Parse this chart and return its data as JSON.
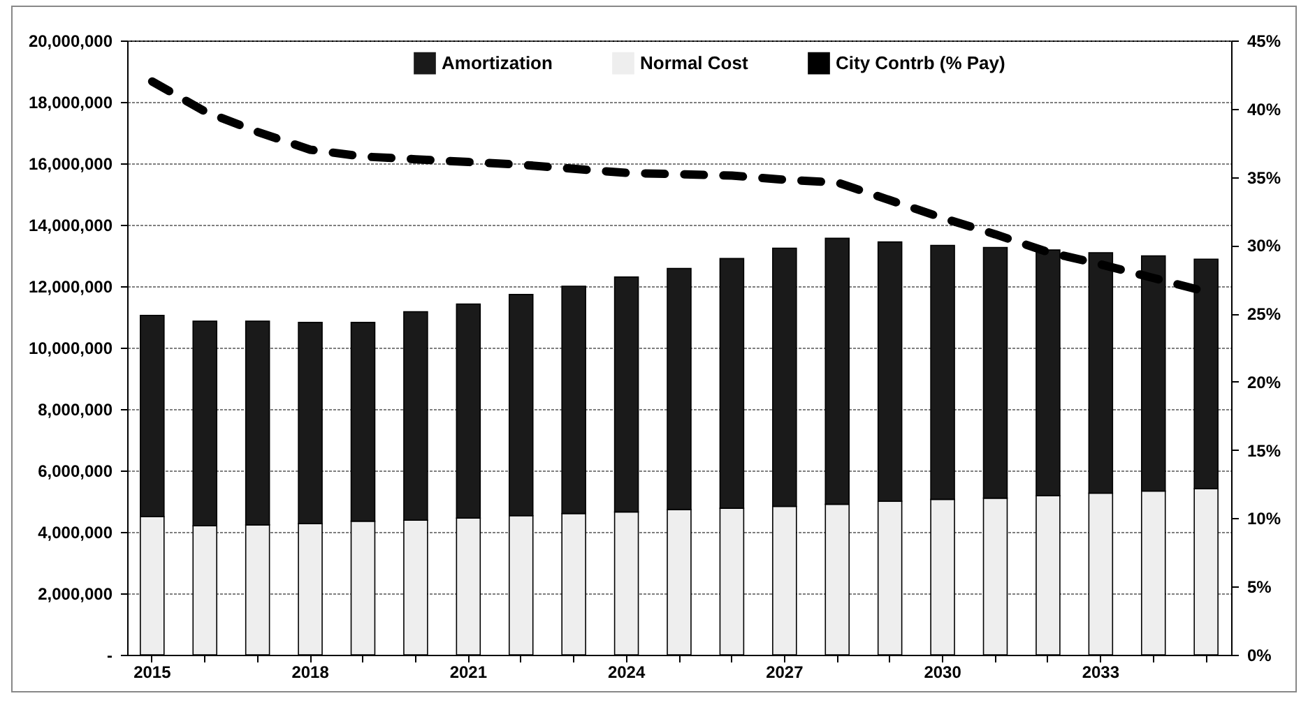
{
  "chart_data": {
    "type": "bar",
    "stacked": true,
    "categories": [
      "2015",
      null,
      null,
      "2018",
      null,
      null,
      "2021",
      null,
      null,
      "2024",
      null,
      null,
      "2027",
      null,
      null,
      "2030",
      null,
      null,
      "2033",
      null,
      null
    ],
    "series": [
      {
        "name": "Normal Cost",
        "color": "#eeeeee",
        "values": [
          4500000,
          4200000,
          4230000,
          4270000,
          4350000,
          4380000,
          4450000,
          4530000,
          4600000,
          4650000,
          4730000,
          4770000,
          4830000,
          4900000,
          5000000,
          5060000,
          5100000,
          5180000,
          5260000,
          5330000,
          5410000
        ]
      },
      {
        "name": "Amortization",
        "color": "#1a1a1a",
        "values": [
          6550000,
          6660000,
          6630000,
          6550000,
          6470000,
          6790000,
          6970000,
          7200000,
          7400000,
          7650000,
          7850000,
          8130000,
          8410000,
          8660000,
          8440000,
          8270000,
          8160000,
          8000000,
          7830000,
          7660000,
          7470000
        ]
      },
      {
        "name": "City Contrb (% Pay)",
        "type": "line",
        "axis": "y2",
        "color": "#000000",
        "line_style": "dashed",
        "values": [
          42.0,
          39.8,
          38.3,
          37.0,
          36.5,
          36.3,
          36.1,
          35.9,
          35.6,
          35.3,
          35.2,
          35.1,
          34.8,
          34.6,
          33.3,
          32.0,
          30.8,
          29.5,
          28.6,
          27.6,
          26.6
        ]
      }
    ],
    "ylim": [
      0,
      20000000
    ],
    "yticks": [
      {
        "value": 0,
        "label": "-"
      },
      {
        "value": 2000000,
        "label": "2,000,000"
      },
      {
        "value": 4000000,
        "label": "4,000,000"
      },
      {
        "value": 6000000,
        "label": "6,000,000"
      },
      {
        "value": 8000000,
        "label": "8,000,000"
      },
      {
        "value": 10000000,
        "label": "10,000,000"
      },
      {
        "value": 12000000,
        "label": "12,000,000"
      },
      {
        "value": 14000000,
        "label": "14,000,000"
      },
      {
        "value": 16000000,
        "label": "16,000,000"
      },
      {
        "value": 18000000,
        "label": "18,000,000"
      },
      {
        "value": 20000000,
        "label": "20,000,000"
      }
    ],
    "y2lim": [
      0,
      45
    ],
    "y2ticks": [
      {
        "value": 0,
        "label": "0%"
      },
      {
        "value": 5,
        "label": "5%"
      },
      {
        "value": 10,
        "label": "10%"
      },
      {
        "value": 15,
        "label": "15%"
      },
      {
        "value": 20,
        "label": "20%"
      },
      {
        "value": 25,
        "label": "25%"
      },
      {
        "value": 30,
        "label": "30%"
      },
      {
        "value": 35,
        "label": "35%"
      },
      {
        "value": 40,
        "label": "40%"
      },
      {
        "value": 45,
        "label": "45%"
      }
    ],
    "grid": "y",
    "legend": "top"
  }
}
